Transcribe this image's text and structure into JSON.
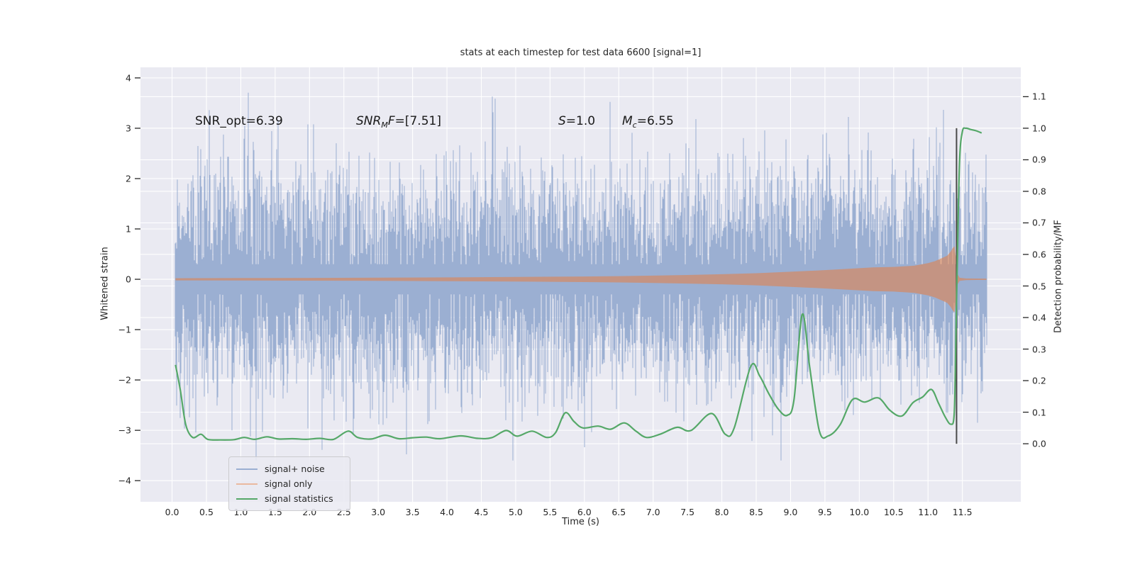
{
  "figure": {
    "title": "stats at each timestep for test data 6600 [signal=1]",
    "xlabel": "Time (s)",
    "ylabel_left": "Whitened strain",
    "ylabel_right": "Detection probability/MF"
  },
  "annotations": {
    "snr_opt": "SNR_opt=6.39",
    "snr_mf_base": "SNR",
    "snr_mf_sub": "M",
    "snr_mf_rest": "F",
    "snr_mf_value": "=[7.51]",
    "s_base": "S",
    "s_value": "=1.0",
    "mc_base": "M",
    "mc_sub": "c",
    "mc_value": "=6.55"
  },
  "legend": {
    "entries": [
      {
        "label": "signal+ noise",
        "color": "#9bafd2"
      },
      {
        "label": "signal only",
        "color": "#eab99f"
      },
      {
        "label": "signal statistics",
        "color": "#55a868"
      }
    ]
  },
  "colors": {
    "plot_bg": "#eaeaf2",
    "grid": "#ffffff",
    "noise": "#9bafd2",
    "signal": "#dd8452",
    "statistics": "#55a868",
    "event_line": "#4a4a4a",
    "text": "#262626"
  },
  "chart_data": {
    "type": "line",
    "title": "stats at each timestep for test data 6600 [signal=1]",
    "xlabel": "Time (s)",
    "ylabel_left": "Whitened strain",
    "ylabel_right": "Detection probability/MF",
    "xlim": [
      -0.46,
      12.35
    ],
    "ylim_strain": [
      -4.42,
      4.21
    ],
    "ylim_prob": [
      -0.184,
      1.193
    ],
    "grid": true,
    "legend_position": "lower left",
    "xticks": {
      "values": [
        0,
        0.5,
        1,
        1.5,
        2,
        2.5,
        3,
        3.5,
        4,
        4.5,
        5,
        5.5,
        6,
        6.5,
        7,
        7.5,
        8,
        8.5,
        9,
        9.5,
        10,
        10.5,
        11,
        11.5
      ],
      "labels": [
        "0.0",
        "0.5",
        "1.0",
        "1.5",
        "2.0",
        "2.5",
        "3.0",
        "3.5",
        "4.0",
        "4.5",
        "5.0",
        "5.5",
        "6.0",
        "6.5",
        "7.0",
        "7.5",
        "8.0",
        "8.5",
        "9.0",
        "9.5",
        "10.0",
        "10.5",
        "11.0",
        "11.5"
      ]
    },
    "yticks_left": {
      "values": [
        4,
        3,
        2,
        1,
        0,
        -1,
        -2,
        -3,
        -4
      ],
      "labels": [
        "4",
        "3",
        "2",
        "1",
        "0",
        "−1",
        "−2",
        "−3",
        "−4"
      ]
    },
    "yticks_right": {
      "values": [
        1.1,
        1.0,
        0.9,
        0.8,
        0.7,
        0.6,
        0.5,
        0.4,
        0.3,
        0.2,
        0.1,
        0.0
      ],
      "labels": [
        "1.1",
        "1.0",
        "0.9",
        "0.8",
        "0.7",
        "0.6",
        "0.5",
        "0.4",
        "0.3",
        "0.2",
        "0.1",
        "0.0"
      ]
    },
    "series": [
      {
        "name": "signal+ noise",
        "axis": "strain",
        "render": "noise_columns",
        "color": "#9bafd2",
        "t_range": [
          0.045,
          11.85
        ],
        "sigma": 1.05,
        "samples_per_column": 6,
        "spike_chance": 0.005,
        "seed": 1337,
        "band_typical": 1.5,
        "spike_max": 3.9
      },
      {
        "name": "signal only",
        "axis": "strain",
        "render": "envelope",
        "color": "#dd8452",
        "opacity": 0.62,
        "envelope": [
          [
            0.05,
            0.022
          ],
          [
            1,
            0.024
          ],
          [
            2,
            0.027
          ],
          [
            3,
            0.031
          ],
          [
            4,
            0.037
          ],
          [
            5,
            0.045
          ],
          [
            6,
            0.056
          ],
          [
            6.5,
            0.063
          ],
          [
            7,
            0.073
          ],
          [
            7.5,
            0.085
          ],
          [
            8,
            0.1
          ],
          [
            8.5,
            0.12
          ],
          [
            9,
            0.15
          ],
          [
            9.4,
            0.175
          ],
          [
            9.8,
            0.205
          ],
          [
            10.2,
            0.235
          ],
          [
            10.5,
            0.245
          ],
          [
            10.8,
            0.27
          ],
          [
            11.0,
            0.32
          ],
          [
            11.1,
            0.36
          ],
          [
            11.2,
            0.42
          ],
          [
            11.28,
            0.47
          ],
          [
            11.33,
            0.55
          ],
          [
            11.36,
            0.62
          ],
          [
            11.385,
            0.66
          ],
          [
            11.41,
            0.4
          ],
          [
            11.43,
            0.1
          ],
          [
            11.46,
            0.03
          ],
          [
            11.55,
            0.016
          ],
          [
            11.7,
            0.014
          ],
          [
            11.85,
            0.013
          ]
        ]
      },
      {
        "name": "signal statistics",
        "axis": "prob",
        "render": "line",
        "color": "#55a868",
        "width": 2.2,
        "points": [
          [
            0.05,
            0.25
          ],
          [
            0.12,
            0.17
          ],
          [
            0.2,
            0.06
          ],
          [
            0.3,
            0.02
          ],
          [
            0.42,
            0.03
          ],
          [
            0.52,
            0.014
          ],
          [
            0.7,
            0.012
          ],
          [
            0.9,
            0.013
          ],
          [
            1.05,
            0.02
          ],
          [
            1.2,
            0.014
          ],
          [
            1.38,
            0.022
          ],
          [
            1.55,
            0.015
          ],
          [
            1.75,
            0.016
          ],
          [
            1.95,
            0.014
          ],
          [
            2.15,
            0.017
          ],
          [
            2.35,
            0.014
          ],
          [
            2.56,
            0.04
          ],
          [
            2.7,
            0.02
          ],
          [
            2.9,
            0.015
          ],
          [
            3.1,
            0.027
          ],
          [
            3.3,
            0.016
          ],
          [
            3.5,
            0.019
          ],
          [
            3.7,
            0.021
          ],
          [
            3.9,
            0.016
          ],
          [
            4.2,
            0.025
          ],
          [
            4.45,
            0.017
          ],
          [
            4.65,
            0.019
          ],
          [
            4.86,
            0.042
          ],
          [
            5.02,
            0.024
          ],
          [
            5.24,
            0.04
          ],
          [
            5.45,
            0.02
          ],
          [
            5.58,
            0.035
          ],
          [
            5.72,
            0.098
          ],
          [
            5.85,
            0.07
          ],
          [
            5.98,
            0.05
          ],
          [
            6.2,
            0.056
          ],
          [
            6.38,
            0.046
          ],
          [
            6.58,
            0.066
          ],
          [
            6.75,
            0.04
          ],
          [
            6.9,
            0.02
          ],
          [
            7.1,
            0.03
          ],
          [
            7.35,
            0.052
          ],
          [
            7.55,
            0.042
          ],
          [
            7.85,
            0.096
          ],
          [
            8.05,
            0.03
          ],
          [
            8.18,
            0.05
          ],
          [
            8.42,
            0.245
          ],
          [
            8.55,
            0.215
          ],
          [
            8.68,
            0.16
          ],
          [
            8.82,
            0.11
          ],
          [
            8.95,
            0.09
          ],
          [
            9.05,
            0.14
          ],
          [
            9.17,
            0.41
          ],
          [
            9.28,
            0.24
          ],
          [
            9.42,
            0.04
          ],
          [
            9.55,
            0.025
          ],
          [
            9.72,
            0.06
          ],
          [
            9.9,
            0.14
          ],
          [
            10.08,
            0.132
          ],
          [
            10.28,
            0.145
          ],
          [
            10.45,
            0.105
          ],
          [
            10.62,
            0.088
          ],
          [
            10.78,
            0.13
          ],
          [
            10.92,
            0.148
          ],
          [
            11.05,
            0.172
          ],
          [
            11.15,
            0.13
          ],
          [
            11.25,
            0.085
          ],
          [
            11.33,
            0.062
          ],
          [
            11.38,
            0.09
          ],
          [
            11.4,
            0.28
          ],
          [
            11.43,
            0.62
          ],
          [
            11.46,
            0.9
          ],
          [
            11.5,
            0.99
          ],
          [
            11.55,
            1.0
          ],
          [
            11.62,
            0.996
          ],
          [
            11.7,
            0.992
          ],
          [
            11.78,
            0.985
          ]
        ]
      }
    ],
    "event_line": {
      "t": 11.415,
      "v_from": 0.0,
      "v_to": 1.0,
      "color": "#4a4a4a"
    }
  }
}
